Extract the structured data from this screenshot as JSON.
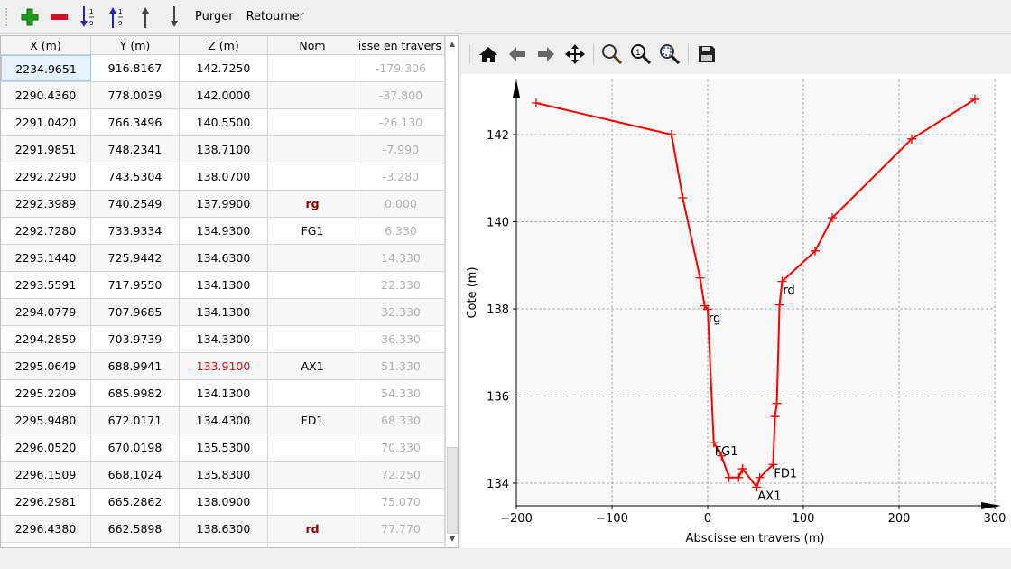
{
  "toolbar": {
    "buttons": [
      {
        "icon": "add-icon",
        "label": "Ajouter"
      },
      {
        "icon": "remove-icon",
        "label": "Supprimer"
      },
      {
        "icon": "sort-ascending-icon"
      },
      {
        "icon": "sort-descending-icon"
      },
      {
        "icon": "move-up-icon"
      },
      {
        "icon": "move-down-icon"
      }
    ],
    "purge_label": "Purger",
    "reverse_label": "Retourner"
  },
  "table": {
    "columns": [
      "X (m)",
      "Y (m)",
      "Z (m)",
      "Nom",
      "Abscisse en travers"
    ],
    "rows": [
      [
        "2234.9651",
        "916.8167",
        "142.7250",
        "",
        "-179.306"
      ],
      [
        "2290.4360",
        "778.0039",
        "142.0000",
        "",
        "-37.800"
      ],
      [
        "2291.0420",
        "766.3496",
        "140.5500",
        "",
        "-26.130"
      ],
      [
        "2291.9851",
        "748.2341",
        "138.7100",
        "",
        "-7.990"
      ],
      [
        "2292.2290",
        "743.5304",
        "138.0700",
        "",
        "-3.280"
      ],
      [
        "2292.3989",
        "740.2549",
        "137.9900",
        "rg",
        "0.000"
      ],
      [
        "2292.7280",
        "733.9334",
        "134.9300",
        "FG1",
        "6.330"
      ],
      [
        "2293.1440",
        "725.9442",
        "134.6300",
        "",
        "14.330"
      ],
      [
        "2293.5591",
        "717.9550",
        "134.1300",
        "",
        "22.330"
      ],
      [
        "2294.0779",
        "707.9685",
        "134.1300",
        "",
        "32.330"
      ],
      [
        "2294.2859",
        "703.9739",
        "134.3300",
        "",
        "36.330"
      ],
      [
        "2295.0649",
        "688.9941",
        "133.9100",
        "AX1",
        "51.330"
      ],
      [
        "2295.2209",
        "685.9982",
        "134.1300",
        "",
        "54.330"
      ],
      [
        "2295.9480",
        "672.0171",
        "134.4300",
        "FD1",
        "68.330"
      ],
      [
        "2296.0520",
        "670.0198",
        "135.5300",
        "",
        "70.330"
      ],
      [
        "2296.1509",
        "668.1024",
        "135.8300",
        "",
        "72.250"
      ],
      [
        "2296.2981",
        "665.2862",
        "138.0900",
        "",
        "75.070"
      ],
      [
        "2296.4380",
        "662.5898",
        "138.6300",
        "rd",
        "77.770"
      ],
      [
        "",
        "",
        "",
        "",
        ""
      ]
    ],
    "highlight_min_z_color": "#ff0000",
    "bank_name_color": "#8b0000"
  },
  "plot_toolbar": {
    "icons": [
      "home-icon",
      "back-icon",
      "forward-icon",
      "pan-icon",
      "zoom-icon",
      "zoom-1-icon",
      "zoom-fit-icon",
      "save-icon"
    ]
  },
  "chart_data": {
    "type": "line",
    "xlabel": "Abscisse en travers (m)",
    "ylabel": "Cote (m)",
    "xlim": [
      -205,
      305
    ],
    "ylim": [
      133.5,
      143.3
    ],
    "xticks": [
      -200,
      -100,
      0,
      100,
      200,
      300
    ],
    "xtick_labels": [
      "−200",
      "−100",
      "0",
      "100",
      "200",
      "300"
    ],
    "yticks": [
      134,
      136,
      138,
      140,
      142
    ],
    "ytick_labels": [
      "134",
      "136",
      "138",
      "140",
      "142"
    ],
    "grid": true,
    "color": "#ff0000",
    "marker": "+",
    "x": [
      -179.306,
      -37.8,
      -26.13,
      -7.99,
      -3.28,
      0,
      6.33,
      14.33,
      22.33,
      32.33,
      36.33,
      51.33,
      54.33,
      68.33,
      70.33,
      72.25,
      75.07,
      77.77,
      112.3,
      130.2,
      213.2,
      279.2
    ],
    "y": [
      142.725,
      142.0,
      140.55,
      138.71,
      138.07,
      137.99,
      134.93,
      134.63,
      134.13,
      134.13,
      134.33,
      133.91,
      134.13,
      134.43,
      135.53,
      135.83,
      138.09,
      138.63,
      139.33,
      140.09,
      141.9,
      142.81
    ],
    "annotations": [
      {
        "text": "rg",
        "x": 0,
        "y": 137.99
      },
      {
        "text": "FG1",
        "x": 6.33,
        "y": 134.93
      },
      {
        "text": "AX1",
        "x": 51.33,
        "y": 133.91
      },
      {
        "text": "FD1",
        "x": 68.33,
        "y": 134.43
      },
      {
        "text": "rd",
        "x": 77.77,
        "y": 138.63
      }
    ]
  }
}
